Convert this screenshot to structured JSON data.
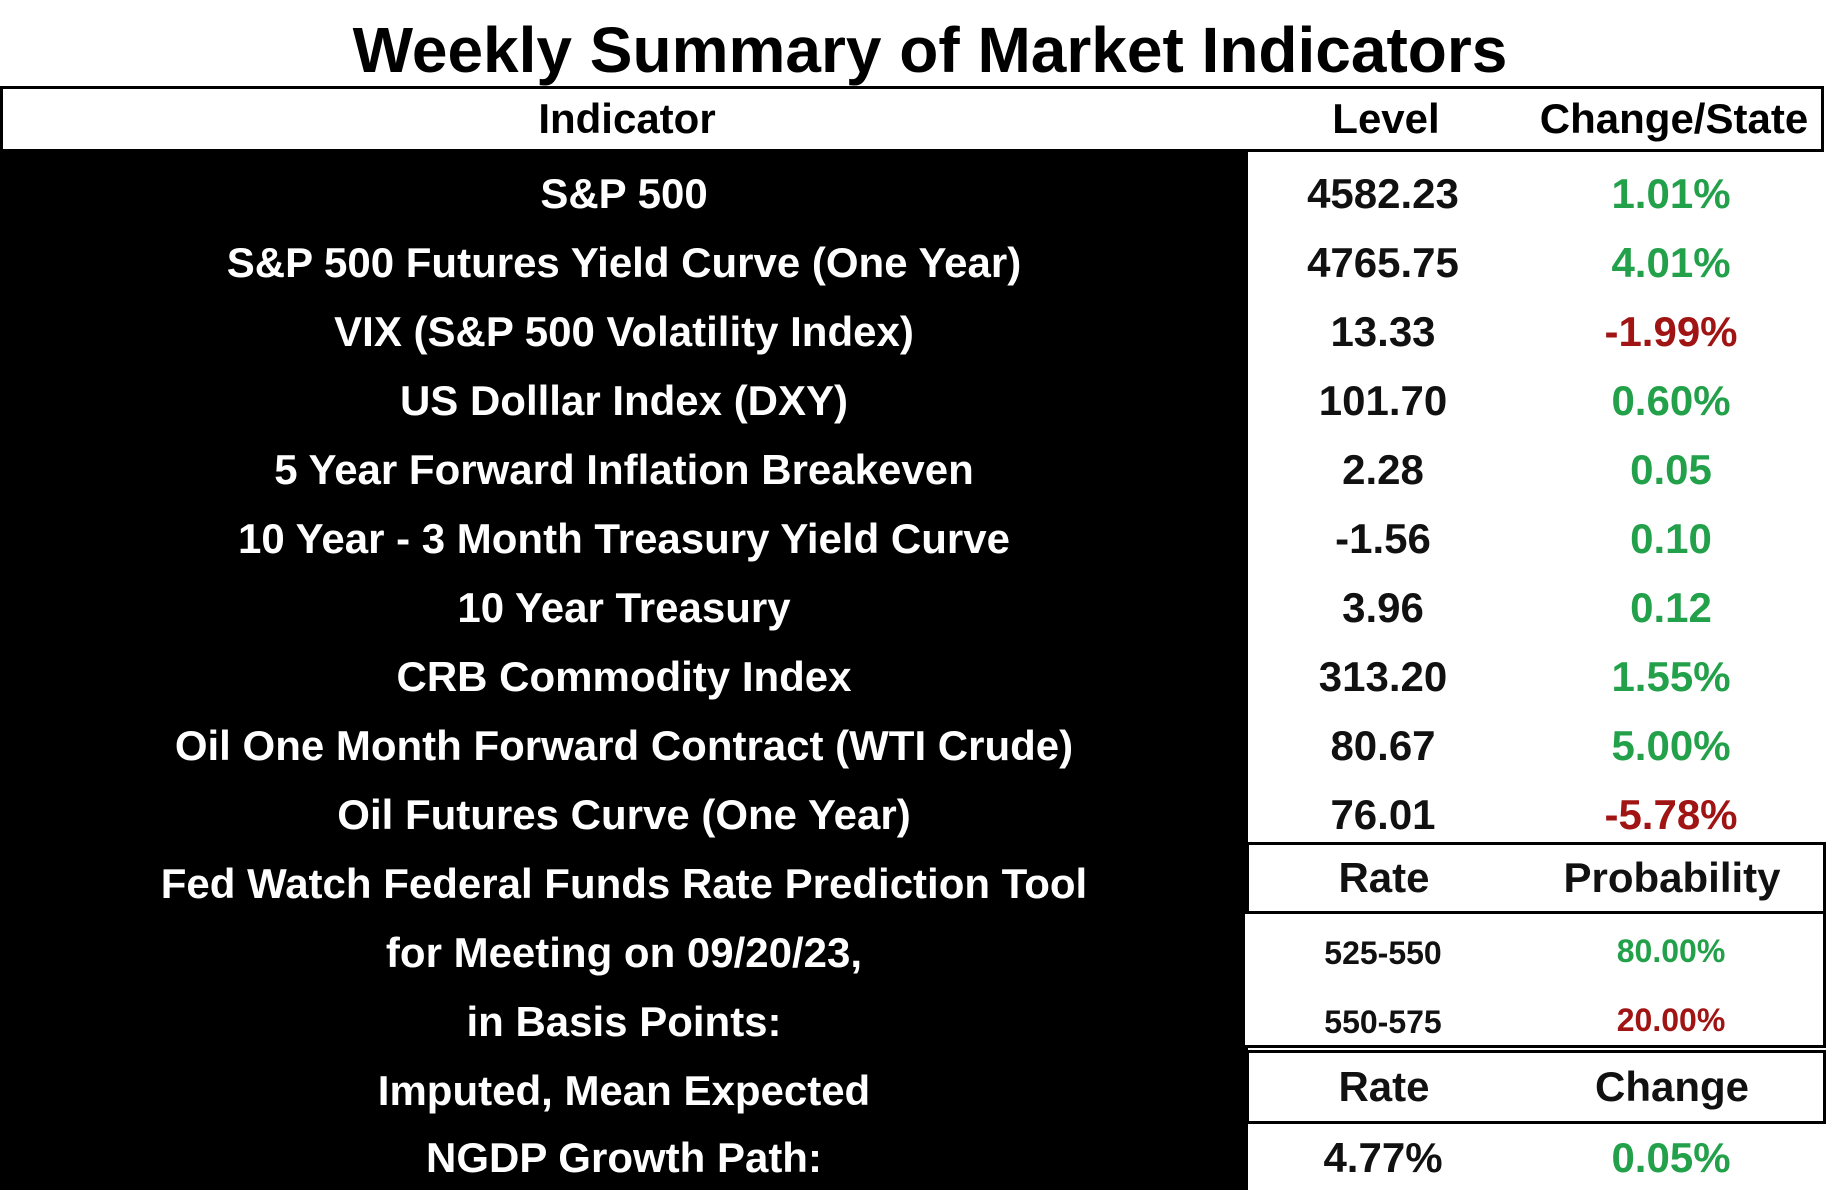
{
  "title": "Weekly Summary of Market Indicators",
  "header": {
    "indicator": "Indicator",
    "level": "Level",
    "change": "Change/State"
  },
  "rows": [
    {
      "indicator": "S&P 500",
      "level": "4582.23",
      "change": "1.01%"
    },
    {
      "indicator": "S&P 500 Futures Yield Curve (One Year)",
      "level": "4765.75",
      "change": "4.01%"
    },
    {
      "indicator": "VIX (S&P 500 Volatility Index)",
      "level": "13.33",
      "change": "-1.99%"
    },
    {
      "indicator": "US Dolllar Index (DXY)",
      "level": "101.70",
      "change": "0.60%"
    },
    {
      "indicator": "5 Year Forward Inflation Breakeven",
      "level": "2.28",
      "change": "0.05"
    },
    {
      "indicator": "10 Year  - 3 Month Treasury Yield Curve",
      "level": "-1.56",
      "change": "0.10"
    },
    {
      "indicator": "10 Year Treasury",
      "level": "3.96",
      "change": "0.12"
    },
    {
      "indicator": "CRB Commodity Index",
      "level": "313.20",
      "change": "1.55%"
    },
    {
      "indicator": "Oil One Month Forward Contract (WTI Crude)",
      "level": "80.67",
      "change": "5.00%"
    },
    {
      "indicator": "Oil Futures Curve (One Year)",
      "level": "76.01",
      "change": "-5.78%"
    }
  ],
  "fedwatch": {
    "line1": "Fed Watch Federal Funds Rate Prediction Tool",
    "line2": "for Meeting on 09/20/23,",
    "line3": "in Basis Points:",
    "rate_header": "Rate",
    "prob_header": "Probability",
    "entries": [
      {
        "rate": "525-550",
        "probability": "80.00%"
      },
      {
        "rate": "550-575",
        "probability": "20.00%"
      }
    ]
  },
  "ngdp": {
    "line1": "Imputed, Mean Expected",
    "line2": "NGDP Growth Path:",
    "rate_header": "Rate",
    "change_header": "Change",
    "rate": "4.77%",
    "change": "0.05%"
  },
  "colors": {
    "positive": "#22a04a",
    "negative": "#a01414",
    "background": "#000000"
  }
}
